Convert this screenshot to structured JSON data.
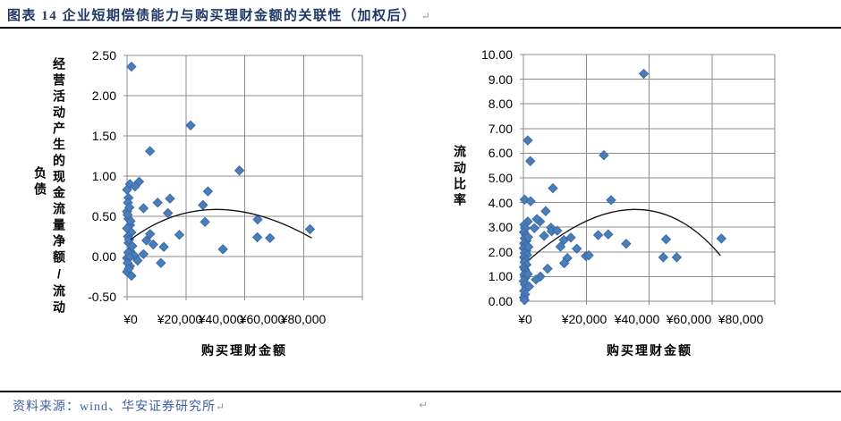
{
  "page": {
    "title": "图表 14  企业短期偿债能力与购买理财金额的关联性（加权后）",
    "title_return_mark": "↵",
    "mid_return_mark": "↵",
    "source": "资料来源：wind、华安证券研究所",
    "source_return_mark": "↵"
  },
  "colors": {
    "title_text": "#1F3864",
    "source_text": "#3F5F9E",
    "grid": "#8C8C8C",
    "marker_fill": "#4A7EBB",
    "marker_stroke": "#3B6AA5",
    "trend": "#111111"
  },
  "chart_data": [
    {
      "type": "scatter",
      "title": "",
      "xlabel": "购买理财金额",
      "ylabel": "经营活动产生的现金流量净额/流动负债",
      "ylabel_lines": [
        "经营活动产生的现金流量净额/流动",
        "负债"
      ],
      "xlim": [
        0,
        80000
      ],
      "ylim": [
        -0.5,
        2.5
      ],
      "xtick_labels": [
        "¥0",
        "¥20,000",
        "¥40,000",
        "¥60,000",
        "¥80,000"
      ],
      "ytick_labels": [
        "2.50",
        "2.00",
        "1.50",
        "1.00",
        "0.50",
        "0.00",
        "-0.50"
      ],
      "ytick_values": [
        2.5,
        2.0,
        1.5,
        1.0,
        0.5,
        0.0,
        -0.5
      ],
      "grid": true,
      "legend": "none",
      "marker": "diamond",
      "points": [
        [
          1500,
          2.36
        ],
        [
          21600,
          1.63
        ],
        [
          7800,
          1.31
        ],
        [
          38200,
          1.07
        ],
        [
          27500,
          0.81
        ],
        [
          14600,
          0.72
        ],
        [
          10400,
          0.67
        ],
        [
          25800,
          0.64
        ],
        [
          5600,
          0.6
        ],
        [
          13900,
          0.54
        ],
        [
          44400,
          0.46
        ],
        [
          26500,
          0.43
        ],
        [
          62200,
          0.34
        ],
        [
          17800,
          0.27
        ],
        [
          44300,
          0.24
        ],
        [
          48600,
          0.23
        ],
        [
          7850,
          0.28
        ],
        [
          6600,
          0.2
        ],
        [
          8900,
          0.15
        ],
        [
          12500,
          0.12
        ],
        [
          32600,
          0.09
        ],
        [
          11500,
          -0.08
        ],
        [
          4100,
          0.93
        ],
        [
          1000,
          0.9
        ],
        [
          2700,
          0.87
        ],
        [
          0,
          0.83
        ],
        [
          500,
          0.73
        ],
        [
          300,
          0.67
        ],
        [
          0,
          0.56
        ],
        [
          500,
          0.47
        ],
        [
          1000,
          0.39
        ],
        [
          0,
          0.35
        ],
        [
          1500,
          0.3
        ],
        [
          500,
          0.17
        ],
        [
          1000,
          0.07
        ],
        [
          5600,
          0.03
        ],
        [
          2500,
          0.01
        ],
        [
          0,
          -0.02
        ],
        [
          3600,
          -0.05
        ],
        [
          1000,
          -0.12
        ],
        [
          0,
          -0.19
        ],
        [
          1500,
          -0.24
        ],
        [
          800,
          0.61
        ],
        [
          200,
          0.52
        ],
        [
          1200,
          0.44
        ],
        [
          300,
          0.25
        ],
        [
          700,
          0.21
        ],
        [
          1800,
          0.13
        ],
        [
          400,
          0.05
        ],
        [
          900,
          -0.01
        ],
        [
          200,
          -0.08
        ],
        [
          600,
          -0.15
        ]
      ],
      "trend": {
        "type": "polynomial-2",
        "start": [
          1200,
          0.21
        ],
        "peak": [
          30000,
          0.585
        ],
        "end": [
          62800,
          0.23
        ]
      }
    },
    {
      "type": "scatter",
      "title": "",
      "xlabel": "购买理财金额",
      "ylabel": "流动比率",
      "ylabel_lines": [
        "流动比率"
      ],
      "xlim": [
        0,
        80000
      ],
      "ylim": [
        0,
        10
      ],
      "xtick_labels": [
        "¥0",
        "¥20,000",
        "¥40,000",
        "¥60,000",
        "¥80,000"
      ],
      "ytick_labels": [
        "10.00",
        "9.00",
        "8.00",
        "7.00",
        "6.00",
        "5.00",
        "4.00",
        "3.00",
        "2.00",
        "1.00",
        "0.00"
      ],
      "ytick_values": [
        10,
        9,
        8,
        7,
        6,
        5,
        4,
        3,
        2,
        1,
        0
      ],
      "grid": true,
      "legend": "none",
      "marker": "diamond",
      "points": [
        [
          38300,
          9.22
        ],
        [
          1400,
          6.52
        ],
        [
          25600,
          5.92
        ],
        [
          2200,
          5.68
        ],
        [
          9400,
          4.58
        ],
        [
          400,
          4.12
        ],
        [
          2300,
          4.05
        ],
        [
          27900,
          4.1
        ],
        [
          7100,
          3.65
        ],
        [
          1400,
          3.23
        ],
        [
          5300,
          3.23
        ],
        [
          4300,
          3.33
        ],
        [
          3500,
          2.96
        ],
        [
          8800,
          2.98
        ],
        [
          9000,
          2.84
        ],
        [
          10800,
          2.86
        ],
        [
          6600,
          2.65
        ],
        [
          15100,
          2.58
        ],
        [
          27000,
          2.71
        ],
        [
          23800,
          2.68
        ],
        [
          45400,
          2.51
        ],
        [
          63000,
          2.54
        ],
        [
          32700,
          2.33
        ],
        [
          11800,
          2.21
        ],
        [
          12900,
          2.48
        ],
        [
          17000,
          2.13
        ],
        [
          19900,
          1.83
        ],
        [
          20800,
          1.86
        ],
        [
          44500,
          1.78
        ],
        [
          48800,
          1.78
        ],
        [
          14000,
          1.75
        ],
        [
          13000,
          1.54
        ],
        [
          7700,
          1.32
        ],
        [
          5400,
          1.0
        ],
        [
          4000,
          0.88
        ],
        [
          300,
          3.1
        ],
        [
          600,
          2.95
        ],
        [
          150,
          2.8
        ],
        [
          800,
          2.68
        ],
        [
          400,
          2.55
        ],
        [
          1000,
          2.45
        ],
        [
          250,
          2.35
        ],
        [
          650,
          2.25
        ],
        [
          100,
          2.15
        ],
        [
          900,
          2.05
        ],
        [
          450,
          1.95
        ],
        [
          1200,
          1.88
        ],
        [
          200,
          1.78
        ],
        [
          700,
          1.68
        ],
        [
          350,
          1.58
        ],
        [
          1000,
          1.48
        ],
        [
          150,
          1.38
        ],
        [
          550,
          1.28
        ],
        [
          850,
          1.18
        ],
        [
          300,
          1.08
        ],
        [
          600,
          0.95
        ],
        [
          100,
          0.82
        ],
        [
          450,
          0.68
        ],
        [
          900,
          0.55
        ],
        [
          250,
          0.42
        ],
        [
          550,
          0.28
        ],
        [
          150,
          0.15
        ],
        [
          400,
          0.05
        ],
        [
          1500,
          2.6
        ],
        [
          1600,
          2.2
        ],
        [
          1400,
          1.1
        ],
        [
          1800,
          0.6
        ]
      ],
      "trend": {
        "type": "polynomial-2",
        "start": [
          2000,
          1.7
        ],
        "peak": [
          35000,
          3.72
        ],
        "end": [
          62700,
          1.85
        ]
      }
    }
  ]
}
